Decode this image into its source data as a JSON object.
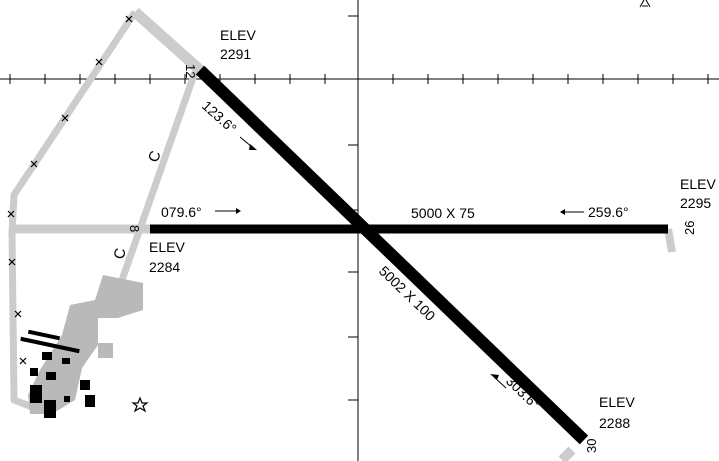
{
  "diagram": {
    "colors": {
      "runway": "#000000",
      "taxiway": "#cccccc",
      "apron": "#b9b9b9",
      "building": "#000000",
      "background": "#ffffff",
      "grid": "#000000"
    },
    "runways": [
      {
        "id": "runway-8-26",
        "ends": [
          "8",
          "26"
        ],
        "dimensions": "5000 X 75",
        "headings": [
          "079.6°",
          "259.6°"
        ],
        "elevations": [
          {
            "label": "ELEV",
            "value": "2284"
          },
          {
            "label": "ELEV",
            "value": "2295"
          }
        ]
      },
      {
        "id": "runway-12-30",
        "ends": [
          "12",
          "30"
        ],
        "dimensions": "5002 X 100",
        "headings": [
          "123.6°",
          "303.6°"
        ],
        "elevations": [
          {
            "label": "ELEV",
            "value": "2291"
          },
          {
            "label": "ELEV",
            "value": "2288"
          }
        ]
      }
    ],
    "taxiways": [
      "C",
      "C"
    ],
    "symbols": {
      "beacon": "star-icon",
      "closed_taxiway_mark": "x-mark-icon",
      "compass": "north-arrow-icon"
    }
  }
}
